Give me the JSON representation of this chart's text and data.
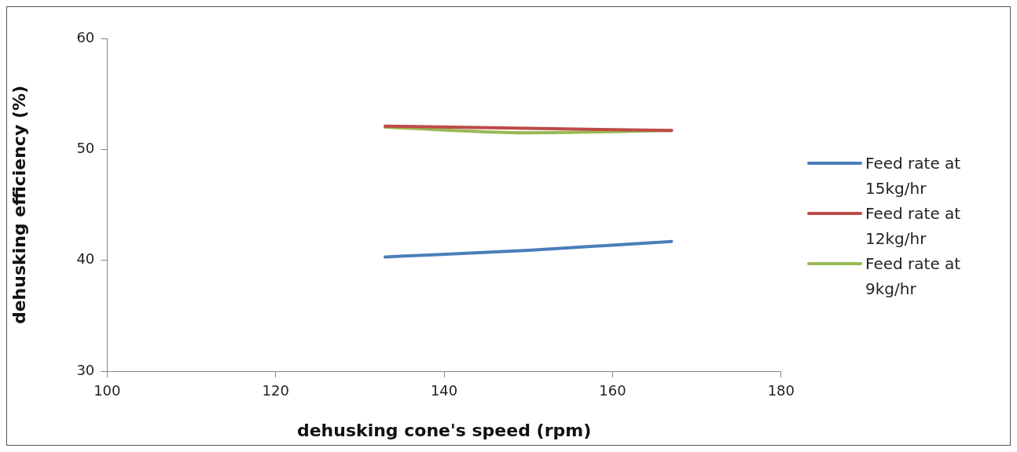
{
  "chart_data": {
    "type": "line",
    "xlabel": "dehusking cone's speed (rpm)",
    "ylabel": "dehusking efficiency (%)",
    "x": [
      133,
      150,
      167
    ],
    "series": [
      {
        "name": "Feed rate at 15kg/hr",
        "color": "#4a7ebb",
        "values": [
          40.3,
          40.9,
          41.7
        ]
      },
      {
        "name": "Feed rate at 12kg/hr",
        "color": "#be4b48",
        "values": [
          52.1,
          51.9,
          51.7
        ]
      },
      {
        "name": "Feed rate at 9kg/hr",
        "color": "#98b954",
        "values": [
          52.0,
          51.5,
          51.7
        ]
      }
    ],
    "xlim": [
      100,
      180
    ],
    "xticks": [
      100,
      120,
      140,
      160,
      180
    ],
    "ylim": [
      30,
      60
    ],
    "yticks": [
      30,
      40,
      50,
      60
    ],
    "grid": false,
    "legend": "right",
    "marker": "none",
    "line_style": "solid"
  }
}
